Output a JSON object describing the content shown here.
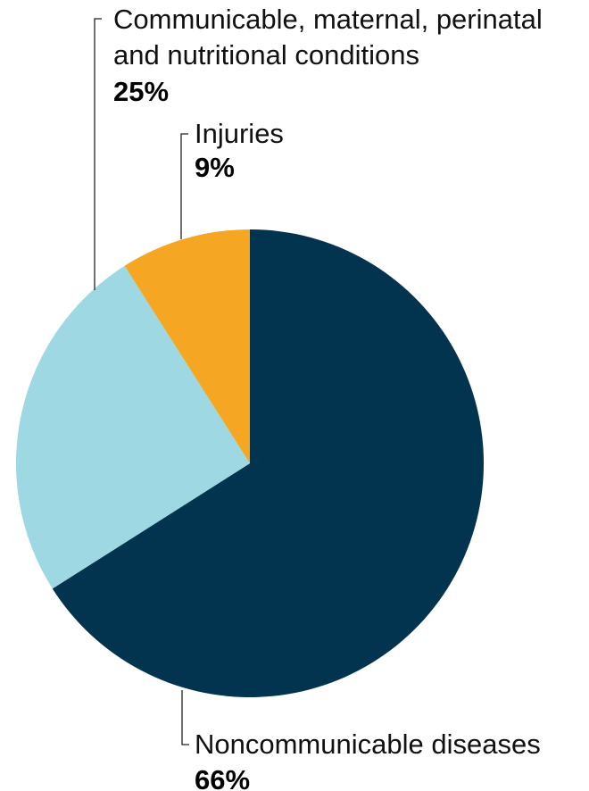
{
  "chart_data": {
    "type": "pie",
    "title": "",
    "start_angle_deg": 0,
    "direction": "clockwise",
    "slices": [
      {
        "name": "Noncommunicable diseases",
        "label_lines": [
          "Noncommunicable diseases"
        ],
        "value": 66,
        "value_label": "66%",
        "color": "#03344F"
      },
      {
        "name": "Communicable, maternal, perinatal and nutritional conditions",
        "label_lines": [
          "Communicable, maternal, perinatal",
          "and nutritional conditions"
        ],
        "value": 25,
        "value_label": "25%",
        "color": "#9DD8E3"
      },
      {
        "name": "Injuries",
        "label_lines": [
          "Injuries"
        ],
        "value": 9,
        "value_label": "9%",
        "color": "#F5A623"
      }
    ]
  }
}
